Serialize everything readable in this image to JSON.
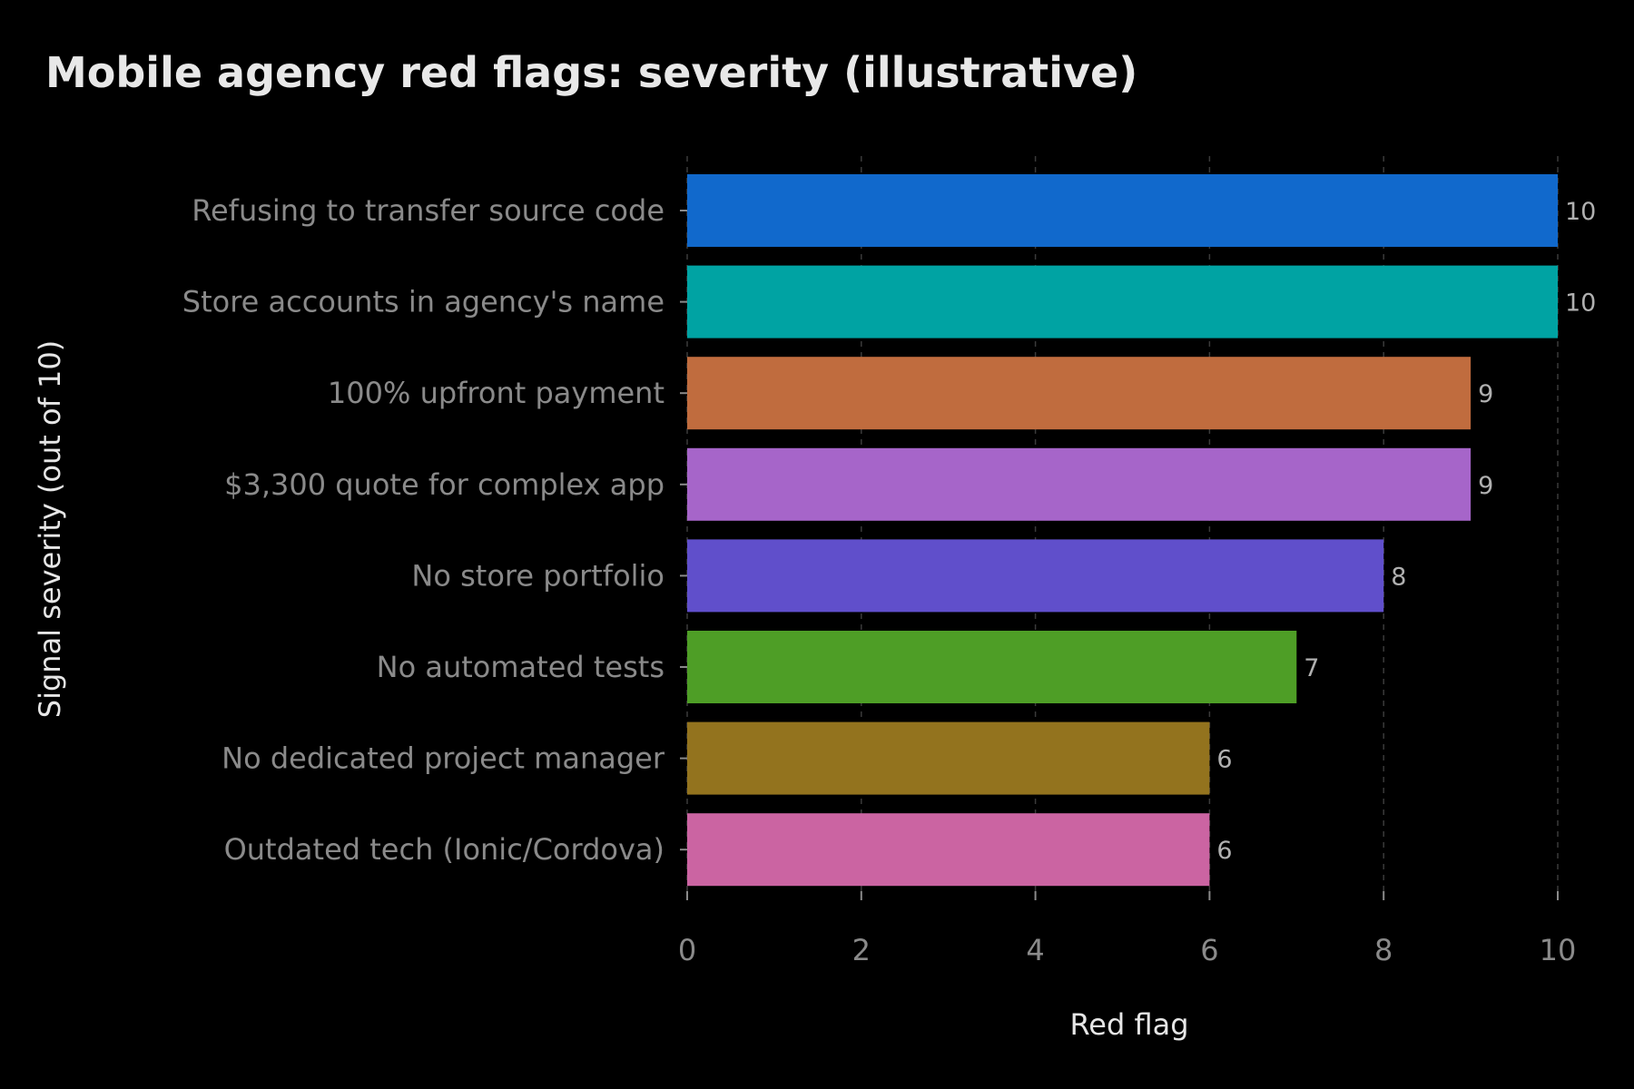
{
  "chart_data": {
    "type": "bar",
    "orientation": "horizontal",
    "title": "Mobile agency red flags: severity (illustrative)",
    "xlabel": "Red flag",
    "ylabel": "Signal severity (out of 10)",
    "xlim": [
      0,
      10
    ],
    "xticks": [
      "0",
      "2",
      "4",
      "6",
      "8",
      "10"
    ],
    "grid": "vertical dashed",
    "categories": [
      "Refusing to transfer source code",
      "Store accounts in agency's name",
      "100% upfront payment",
      "$3,300 quote for complex app",
      "No store portfolio",
      "No automated tests",
      "No dedicated project manager",
      "Outdated tech (Ionic/Cordova)"
    ],
    "values": [
      10,
      10,
      9,
      9,
      8,
      7,
      6,
      6
    ],
    "value_labels": [
      "10",
      "10",
      "9",
      "9",
      "8",
      "7",
      "6",
      "6"
    ],
    "colors": [
      "#1169cc",
      "#00a3a3",
      "#c06c3e",
      "#a665c9",
      "#604fcb",
      "#4e9e26",
      "#93731e",
      "#cb64a2"
    ]
  }
}
